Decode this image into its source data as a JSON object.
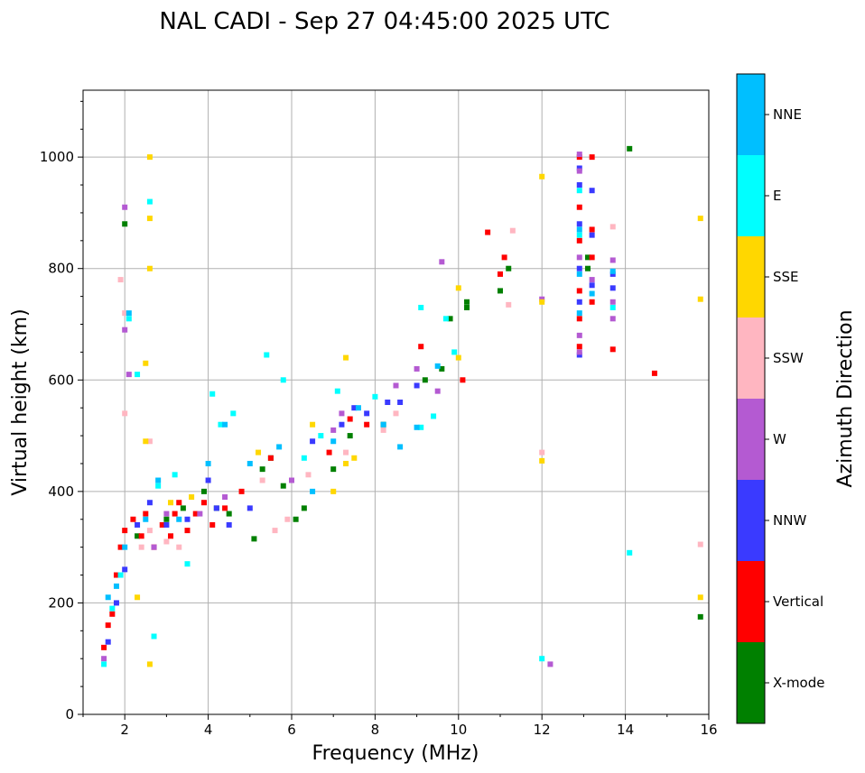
{
  "chart_data": {
    "type": "scatter",
    "title": "NAL CADI - Sep 27 04:45:00 2025 UTC",
    "xlabel": "Frequency (MHz)",
    "ylabel": "Virtual height (km)",
    "xlim": [
      1,
      16
    ],
    "ylim": [
      0,
      1120
    ],
    "xticks": [
      2,
      4,
      6,
      8,
      10,
      12,
      14,
      16
    ],
    "yticks": [
      0,
      200,
      400,
      600,
      800,
      1000
    ],
    "grid": true,
    "colorbar": {
      "label": "Azimuth Direction",
      "categories": [
        {
          "name": "X-mode",
          "color": "#008000"
        },
        {
          "name": "Vertical",
          "color": "#ff0000"
        },
        {
          "name": "NNW",
          "color": "#3a3aff"
        },
        {
          "name": "W",
          "color": "#b45ad2"
        },
        {
          "name": "SSW",
          "color": "#ffb6c1"
        },
        {
          "name": "SSE",
          "color": "#ffd700"
        },
        {
          "name": "E",
          "color": "#00ffff"
        },
        {
          "name": "NNE",
          "color": "#00bfff"
        }
      ]
    },
    "series": [
      {
        "name": "X-mode",
        "points": [
          [
            2.0,
            880
          ],
          [
            2.3,
            320
          ],
          [
            3.0,
            350
          ],
          [
            3.4,
            370
          ],
          [
            3.9,
            400
          ],
          [
            4.2,
            370
          ],
          [
            4.5,
            360
          ],
          [
            5.1,
            315
          ],
          [
            5.3,
            440
          ],
          [
            5.5,
            460
          ],
          [
            5.8,
            410
          ],
          [
            6.1,
            350
          ],
          [
            6.3,
            370
          ],
          [
            7.0,
            440
          ],
          [
            7.4,
            500
          ],
          [
            8.2,
            520
          ],
          [
            9.2,
            600
          ],
          [
            9.6,
            620
          ],
          [
            9.8,
            710
          ],
          [
            10.2,
            730
          ],
          [
            10.2,
            740
          ],
          [
            11.0,
            760
          ],
          [
            11.2,
            800
          ],
          [
            13.1,
            820
          ],
          [
            13.1,
            800
          ],
          [
            14.1,
            1015
          ],
          [
            15.8,
            175
          ]
        ]
      },
      {
        "name": "Vertical",
        "points": [
          [
            1.5,
            120
          ],
          [
            1.6,
            160
          ],
          [
            1.7,
            180
          ],
          [
            1.8,
            250
          ],
          [
            1.9,
            300
          ],
          [
            2.0,
            330
          ],
          [
            2.2,
            350
          ],
          [
            2.4,
            320
          ],
          [
            2.5,
            360
          ],
          [
            2.7,
            300
          ],
          [
            2.9,
            340
          ],
          [
            3.1,
            320
          ],
          [
            3.2,
            360
          ],
          [
            3.3,
            380
          ],
          [
            3.5,
            330
          ],
          [
            3.7,
            360
          ],
          [
            3.9,
            380
          ],
          [
            4.1,
            340
          ],
          [
            4.4,
            370
          ],
          [
            4.8,
            400
          ],
          [
            5.5,
            460
          ],
          [
            6.9,
            470
          ],
          [
            7.4,
            530
          ],
          [
            7.8,
            520
          ],
          [
            9.1,
            660
          ],
          [
            10.1,
            600
          ],
          [
            10.7,
            865
          ],
          [
            11.0,
            790
          ],
          [
            11.1,
            820
          ],
          [
            12.9,
            1000
          ],
          [
            12.9,
            910
          ],
          [
            12.9,
            850
          ],
          [
            12.9,
            760
          ],
          [
            12.9,
            710
          ],
          [
            12.9,
            660
          ],
          [
            13.2,
            1000
          ],
          [
            13.2,
            870
          ],
          [
            13.2,
            820
          ],
          [
            13.2,
            740
          ],
          [
            13.7,
            655
          ],
          [
            14.7,
            612
          ]
        ]
      },
      {
        "name": "NNW",
        "points": [
          [
            1.6,
            130
          ],
          [
            1.8,
            200
          ],
          [
            2.0,
            260
          ],
          [
            2.3,
            340
          ],
          [
            2.6,
            380
          ],
          [
            3.0,
            340
          ],
          [
            3.5,
            350
          ],
          [
            4.0,
            420
          ],
          [
            4.2,
            370
          ],
          [
            4.5,
            340
          ],
          [
            5.0,
            370
          ],
          [
            6.5,
            490
          ],
          [
            7.2,
            520
          ],
          [
            7.5,
            550
          ],
          [
            7.8,
            540
          ],
          [
            8.3,
            560
          ],
          [
            8.6,
            560
          ],
          [
            9.0,
            590
          ],
          [
            12.9,
            980
          ],
          [
            12.9,
            950
          ],
          [
            12.9,
            880
          ],
          [
            12.9,
            800
          ],
          [
            12.9,
            740
          ],
          [
            12.9,
            645
          ],
          [
            13.2,
            940
          ],
          [
            13.2,
            860
          ],
          [
            13.2,
            770
          ],
          [
            13.7,
            765
          ],
          [
            13.7,
            790
          ]
        ]
      },
      {
        "name": "W",
        "points": [
          [
            1.5,
            100
          ],
          [
            2.0,
            910
          ],
          [
            2.1,
            610
          ],
          [
            2.0,
            690
          ],
          [
            2.7,
            300
          ],
          [
            3.0,
            360
          ],
          [
            3.8,
            360
          ],
          [
            4.4,
            390
          ],
          [
            6.0,
            420
          ],
          [
            7.0,
            510
          ],
          [
            7.2,
            540
          ],
          [
            8.5,
            590
          ],
          [
            9.0,
            620
          ],
          [
            9.5,
            580
          ],
          [
            9.6,
            812
          ],
          [
            12.0,
            745
          ],
          [
            12.2,
            90
          ],
          [
            12.9,
            1005
          ],
          [
            12.9,
            975
          ],
          [
            12.9,
            820
          ],
          [
            12.9,
            680
          ],
          [
            12.9,
            650
          ],
          [
            13.2,
            780
          ],
          [
            13.7,
            815
          ],
          [
            13.7,
            740
          ],
          [
            13.7,
            710
          ]
        ]
      },
      {
        "name": "SSW",
        "points": [
          [
            1.9,
            780
          ],
          [
            2.0,
            720
          ],
          [
            2.0,
            540
          ],
          [
            2.4,
            300
          ],
          [
            2.6,
            490
          ],
          [
            2.6,
            330
          ],
          [
            3.0,
            310
          ],
          [
            3.3,
            300
          ],
          [
            5.3,
            420
          ],
          [
            5.6,
            330
          ],
          [
            5.9,
            350
          ],
          [
            6.4,
            430
          ],
          [
            7.3,
            470
          ],
          [
            8.2,
            510
          ],
          [
            8.5,
            540
          ],
          [
            11.3,
            868
          ],
          [
            11.2,
            735
          ],
          [
            12.0,
            470
          ],
          [
            13.7,
            875
          ],
          [
            15.8,
            305
          ]
        ]
      },
      {
        "name": "SSE",
        "points": [
          [
            2.6,
            1000
          ],
          [
            2.6,
            890
          ],
          [
            2.6,
            800
          ],
          [
            2.5,
            630
          ],
          [
            2.3,
            210
          ],
          [
            2.5,
            490
          ],
          [
            2.6,
            90
          ],
          [
            3.1,
            380
          ],
          [
            3.6,
            390
          ],
          [
            5.2,
            470
          ],
          [
            6.5,
            520
          ],
          [
            7.0,
            400
          ],
          [
            7.3,
            450
          ],
          [
            7.3,
            640
          ],
          [
            7.5,
            460
          ],
          [
            10.0,
            765
          ],
          [
            10.0,
            640
          ],
          [
            12.0,
            965
          ],
          [
            12.0,
            740
          ],
          [
            12.0,
            455
          ],
          [
            15.8,
            890
          ],
          [
            15.8,
            745
          ],
          [
            15.8,
            210
          ]
        ]
      },
      {
        "name": "E",
        "points": [
          [
            1.5,
            90
          ],
          [
            1.7,
            190
          ],
          [
            1.9,
            250
          ],
          [
            2.1,
            710
          ],
          [
            2.6,
            920
          ],
          [
            2.3,
            610
          ],
          [
            2.7,
            140
          ],
          [
            2.8,
            410
          ],
          [
            3.2,
            430
          ],
          [
            3.5,
            270
          ],
          [
            4.1,
            575
          ],
          [
            4.3,
            520
          ],
          [
            4.6,
            540
          ],
          [
            5.4,
            645
          ],
          [
            5.8,
            600
          ],
          [
            6.3,
            460
          ],
          [
            6.7,
            500
          ],
          [
            7.1,
            580
          ],
          [
            8.0,
            570
          ],
          [
            9.1,
            730
          ],
          [
            9.1,
            515
          ],
          [
            9.4,
            535
          ],
          [
            9.7,
            710
          ],
          [
            9.9,
            650
          ],
          [
            12.0,
            100
          ],
          [
            12.9,
            940
          ],
          [
            12.9,
            860
          ],
          [
            13.7,
            730
          ],
          [
            14.1,
            290
          ]
        ]
      },
      {
        "name": "NNE",
        "points": [
          [
            1.6,
            210
          ],
          [
            1.8,
            230
          ],
          [
            2.0,
            300
          ],
          [
            2.1,
            720
          ],
          [
            2.5,
            350
          ],
          [
            2.8,
            420
          ],
          [
            3.3,
            350
          ],
          [
            4.0,
            450
          ],
          [
            4.4,
            520
          ],
          [
            5.0,
            450
          ],
          [
            5.7,
            480
          ],
          [
            6.5,
            400
          ],
          [
            7.0,
            490
          ],
          [
            7.6,
            550
          ],
          [
            8.2,
            520
          ],
          [
            8.6,
            480
          ],
          [
            9.0,
            515
          ],
          [
            9.5,
            625
          ],
          [
            12.9,
            870
          ],
          [
            12.9,
            790
          ],
          [
            12.9,
            720
          ],
          [
            13.2,
            755
          ],
          [
            13.7,
            795
          ]
        ]
      }
    ]
  }
}
